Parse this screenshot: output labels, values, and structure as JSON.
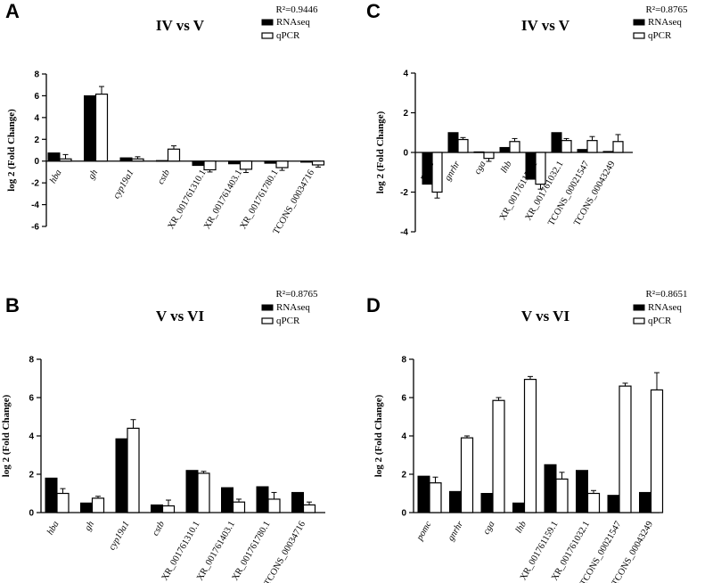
{
  "legend": {
    "rnaseq": "RNAseq",
    "qpcr": "qPCR"
  },
  "chart_data": [
    {
      "panel": "A",
      "type": "bar",
      "title": "IV vs V",
      "r2": "R²=0.9446",
      "ylabel": "log 2 (Fold Change)",
      "ylim": [
        -6,
        8
      ],
      "yticks": [
        -6,
        -4,
        -2,
        0,
        2,
        4,
        6,
        8
      ],
      "categories": [
        "hba",
        "gh",
        "cyp19a1",
        "cstb",
        "XR_001761310.1",
        "XR_001761403.1",
        "XR_001761780.1",
        "TCONS_00034716"
      ],
      "italic_categories": [
        true,
        true,
        true,
        true,
        false,
        false,
        false,
        false
      ],
      "series": [
        {
          "name": "RNAseq",
          "values": [
            0.75,
            6.0,
            0.3,
            0.05,
            -0.4,
            -0.25,
            -0.2,
            -0.1
          ]
        },
        {
          "name": "qPCR",
          "values": [
            0.2,
            6.15,
            0.2,
            1.1,
            -0.8,
            -0.75,
            -0.6,
            -0.35
          ]
        }
      ],
      "errors": [
        0.4,
        0.7,
        0.2,
        0.3,
        0.2,
        0.3,
        0.25,
        0.2
      ]
    },
    {
      "panel": "C",
      "type": "bar",
      "title": "IV vs  V",
      "r2": "R²=0.8765",
      "ylabel": "log 2 (Fold Change)",
      "ylim": [
        -4,
        4
      ],
      "yticks": [
        -4,
        -2,
        0,
        2,
        4
      ],
      "categories": [
        "pomc",
        "gnrhr",
        "cga",
        "lhb",
        "XR_001761159.1",
        "XR_001761032.1",
        "TCONS_00021547",
        "TCONS_00043249"
      ],
      "italic_categories": [
        true,
        true,
        true,
        true,
        false,
        false,
        false,
        false
      ],
      "series": [
        {
          "name": "RNAseq",
          "values": [
            -1.6,
            1.0,
            0.03,
            0.25,
            -1.35,
            1.0,
            0.15,
            0.05
          ]
        },
        {
          "name": "qPCR",
          "values": [
            -2.0,
            0.65,
            -0.3,
            0.55,
            -1.6,
            0.6,
            0.6,
            0.55
          ]
        }
      ],
      "errors": [
        0.3,
        0.1,
        0.15,
        0.15,
        0.25,
        0.1,
        0.2,
        0.35
      ]
    },
    {
      "panel": "B",
      "type": "bar",
      "title": "V vs  VI",
      "r2": "R²=0.8765",
      "ylabel": "log 2 (Fold Change)",
      "ylim": [
        0,
        8
      ],
      "yticks": [
        0,
        2,
        4,
        6,
        8
      ],
      "categories": [
        "hba",
        "gh",
        "cyp19a1",
        "cstb",
        "XR_001761310.1",
        "XR_001761403.1",
        "XR_001761780.1",
        "TCONS_00034716"
      ],
      "italic_categories": [
        true,
        true,
        true,
        true,
        false,
        false,
        false,
        false
      ],
      "series": [
        {
          "name": "RNAseq",
          "values": [
            1.8,
            0.5,
            3.85,
            0.4,
            2.2,
            1.3,
            1.35,
            1.05
          ]
        },
        {
          "name": "qPCR",
          "values": [
            1.0,
            0.75,
            4.4,
            0.35,
            2.05,
            0.55,
            0.7,
            0.4
          ]
        }
      ],
      "errors": [
        0.25,
        0.1,
        0.45,
        0.3,
        0.1,
        0.15,
        0.35,
        0.15
      ]
    },
    {
      "panel": "D",
      "type": "bar",
      "title": "V vs VI",
      "r2": "R²=0.8651",
      "ylabel": "log 2 (Fold Change)",
      "ylim": [
        0,
        8
      ],
      "yticks": [
        0,
        2,
        4,
        6,
        8
      ],
      "categories": [
        "pomc",
        "gnrhr",
        "cga",
        "lhb",
        "XR_001761159.1",
        "XR_001761032.1",
        "TCONS_00021547",
        "TCONS_00043249"
      ],
      "italic_categories": [
        true,
        true,
        true,
        true,
        false,
        false,
        false,
        false
      ],
      "series": [
        {
          "name": "RNAseq",
          "values": [
            1.9,
            1.1,
            1.0,
            0.5,
            2.5,
            2.2,
            0.9,
            1.05
          ]
        },
        {
          "name": "qPCR",
          "values": [
            1.55,
            3.9,
            5.85,
            6.95,
            1.75,
            1.0,
            6.6,
            6.4
          ]
        }
      ],
      "errors": [
        0.3,
        0.1,
        0.15,
        0.15,
        0.35,
        0.15,
        0.15,
        0.9
      ]
    }
  ]
}
